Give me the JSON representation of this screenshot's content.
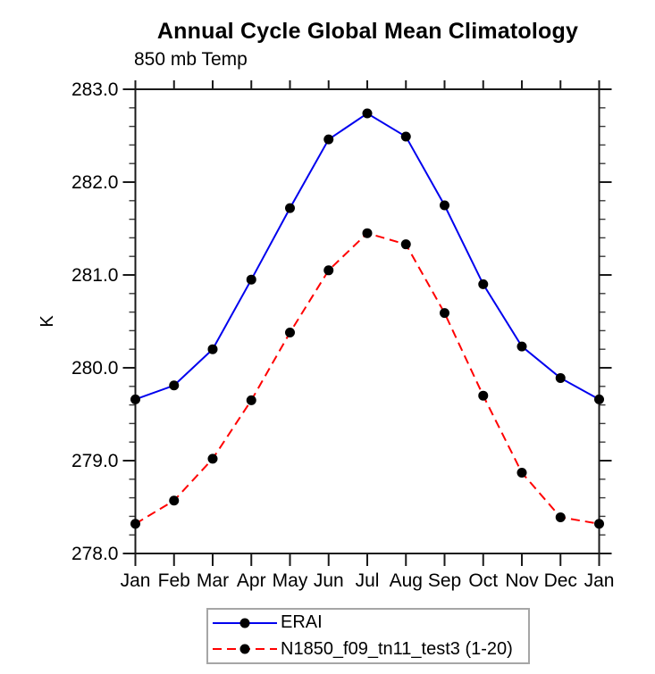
{
  "chart_data": {
    "type": "line",
    "title": "Annual Cycle Global Mean Climatology",
    "subtitle": "850 mb Temp",
    "xlabel": "",
    "ylabel": "K",
    "categories": [
      "Jan",
      "Feb",
      "Mar",
      "Apr",
      "May",
      "Jun",
      "Jul",
      "Aug",
      "Sep",
      "Oct",
      "Nov",
      "Dec",
      "Jan"
    ],
    "ylim": [
      278.0,
      283.0
    ],
    "ytick_major_interval": 1.0,
    "ytick_minor_interval": 0.2,
    "ytick_labels": [
      "278.0",
      "279.0",
      "280.0",
      "281.0",
      "282.0",
      "283.0"
    ],
    "grid": false,
    "legend_position": "bottom-center",
    "axis_color": "#1a1a1a",
    "marker_color": "#000000",
    "series": [
      {
        "name": "ERAI",
        "color": "#0000ee",
        "line_style": "solid",
        "marker": "filled-circle",
        "values": [
          279.66,
          279.81,
          280.2,
          280.95,
          281.72,
          282.46,
          282.74,
          282.49,
          281.75,
          280.9,
          280.23,
          279.89,
          279.66
        ]
      },
      {
        "name": "N1850_f09_tn11_test3 (1-20)",
        "color": "#ff0000",
        "line_style": "dashed",
        "marker": "filled-circle",
        "values": [
          278.32,
          278.57,
          279.02,
          279.65,
          280.38,
          281.05,
          281.45,
          281.33,
          280.59,
          279.7,
          278.87,
          278.39,
          278.32
        ]
      }
    ]
  }
}
